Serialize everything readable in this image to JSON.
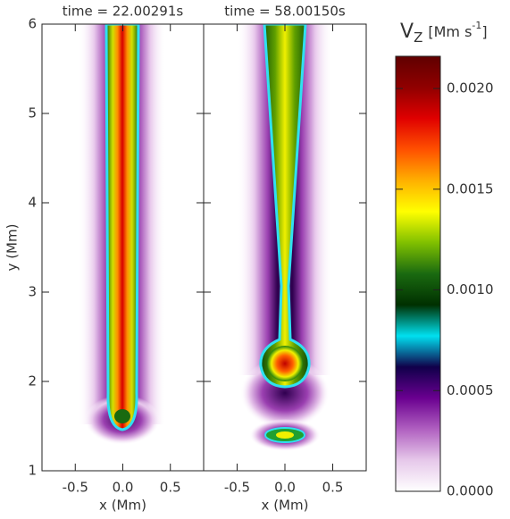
{
  "chart_data": [
    {
      "type": "heatmap",
      "title": "time = 22.00291s",
      "xlabel": "x (Mm)",
      "ylabel": "y (Mm)",
      "xlim": [
        -0.85,
        0.85
      ],
      "xticks": [
        -0.5,
        {
          "value": 0,
          "label": "0.0"
        },
        0.5
      ],
      "ylim": [
        1,
        6
      ],
      "yticks": [
        1,
        2,
        3,
        4,
        5,
        6
      ]
    },
    {
      "type": "heatmap",
      "title": "time = 58.00150s",
      "xlabel": "x (Mm)",
      "xlim": [
        -0.85,
        0.85
      ],
      "xticks": [
        -0.5,
        {
          "value": 0,
          "label": "0.0"
        },
        0.5
      ],
      "ylim": [
        1,
        6
      ],
      "yticks": [
        1,
        2,
        3,
        4,
        5,
        6
      ]
    }
  ],
  "colorbar": {
    "label": {
      "main": "V",
      "sub": "Z",
      "unit": "[Mm s",
      "sup": "-1",
      "close": "]"
    },
    "lim": [
      0,
      0.00216
    ],
    "ticks": [
      {
        "value": 0,
        "label": "0.0000"
      },
      {
        "value": 0.0005,
        "label": "0.0005"
      },
      {
        "value": 0.001,
        "label": "0.0010"
      },
      {
        "value": 0.0015,
        "label": "0.0015"
      },
      {
        "value": 0.002,
        "label": "0.0020"
      }
    ],
    "colormap": [
      "#ffffff",
      "#e6c8ea",
      "#b060c0",
      "#6a0090",
      "#10004a",
      "#00e0f0",
      "#003000",
      "#1a6a10",
      "#80c000",
      "#ffff00",
      "#ffb000",
      "#ff5000",
      "#e00000",
      "#900000",
      "#600000"
    ]
  }
}
